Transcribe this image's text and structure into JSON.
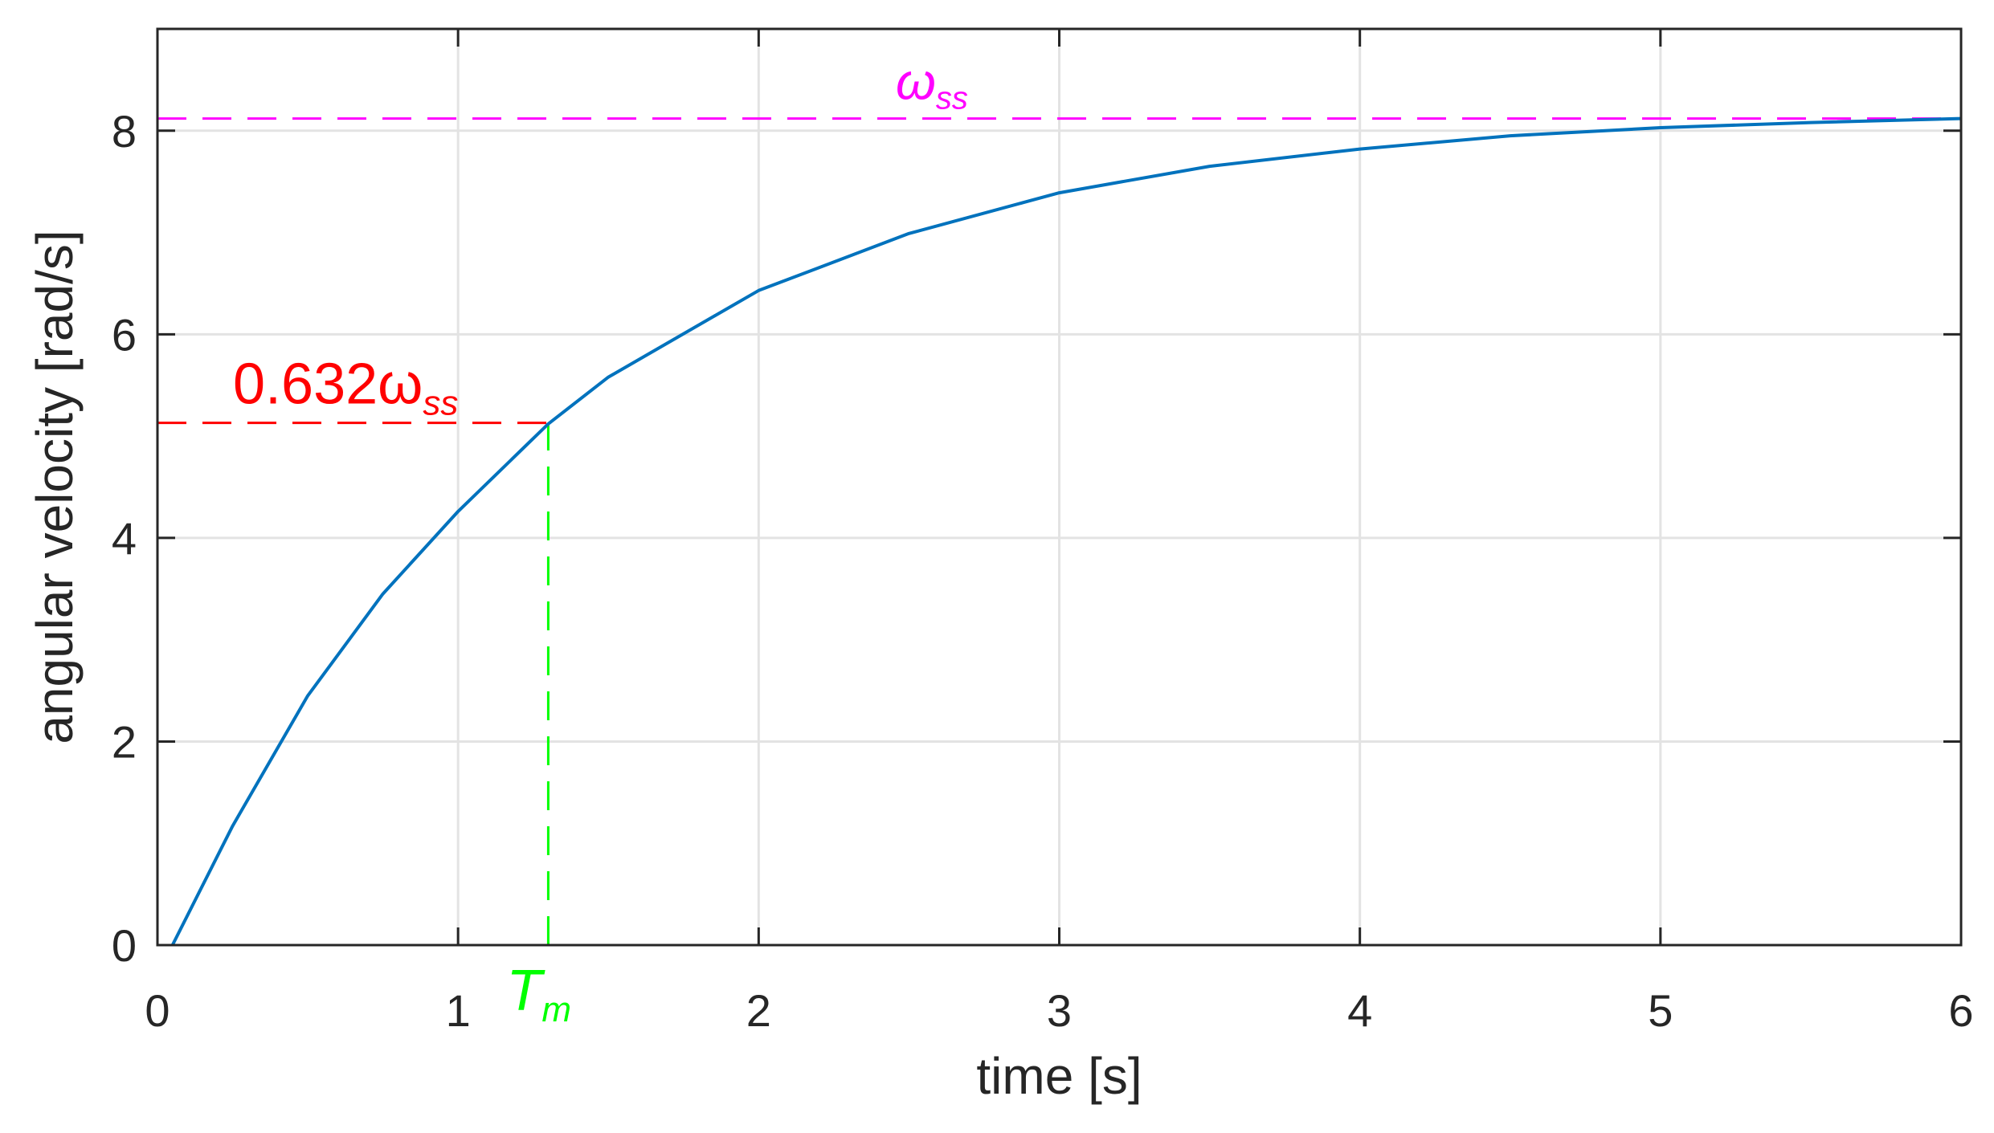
{
  "colors": {
    "curve": "#0072BD",
    "steady_state": "#FF00FF",
    "level_63": "#FF0000",
    "time_constant": "#00FF00",
    "grid": "#E3E3E3",
    "axes": "#262626"
  },
  "chart_data": {
    "type": "line",
    "title": "",
    "xlabel": "time [s]",
    "ylabel": "angular velocity [rad/s]",
    "xlim": [
      0,
      6
    ],
    "ylim": [
      0,
      9
    ],
    "grid": true,
    "x_ticks": [
      "0",
      "1",
      "2",
      "3",
      "4",
      "5",
      "6"
    ],
    "y_ticks": [
      "0",
      "2",
      "4",
      "6",
      "8"
    ],
    "series": [
      {
        "x": [
          0.05,
          0.25,
          0.5,
          0.75,
          1.0,
          1.3,
          1.5,
          2.0,
          2.5,
          3.0,
          3.5,
          4.0,
          4.5,
          5.0,
          5.5,
          6.0
        ],
        "y": [
          0.0,
          1.17,
          2.45,
          3.45,
          4.26,
          5.12,
          5.58,
          6.43,
          6.99,
          7.39,
          7.65,
          7.82,
          7.95,
          8.03,
          8.08,
          8.12
        ]
      }
    ],
    "annotations": {
      "steady_state": {
        "y": 8.12,
        "main": "ω",
        "sub": "ss"
      },
      "level_63": {
        "y": 5.13,
        "x_end": 1.3,
        "main": "0.632ω",
        "sub": "ss"
      },
      "time_constant": {
        "x": 1.3,
        "main": "T",
        "sub": "m"
      }
    }
  }
}
